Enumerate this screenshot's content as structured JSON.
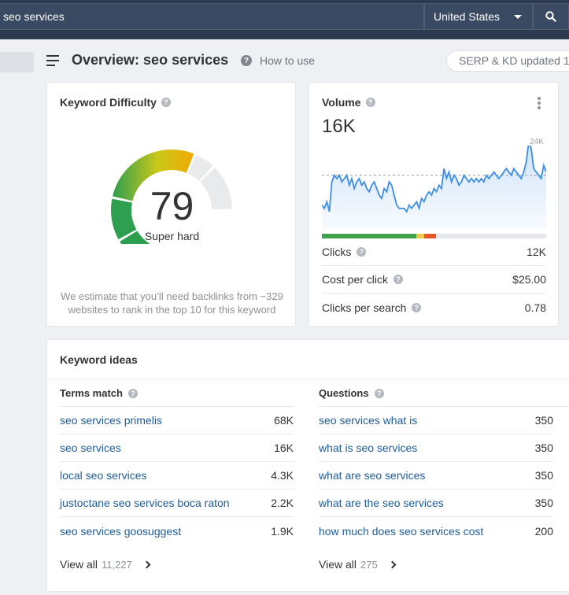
{
  "topbar": {
    "search_value": "seo services",
    "country": "United States"
  },
  "header": {
    "title": "Overview: seo services",
    "how_to_use": "How to use",
    "serp_status": "SERP & KD updated 1"
  },
  "keyword_difficulty": {
    "title": "Keyword Difficulty",
    "value": "79",
    "label": "Super hard",
    "note": "We estimate that you’ll need backlinks from ~329 websites to rank in the top 10 for this keyword",
    "colors": {
      "green": "#2e9e4f",
      "lime": "#c8c81a",
      "orange": "#f2a900",
      "empty": "#e9eaec"
    }
  },
  "volume": {
    "title": "Volume",
    "value": "16K",
    "axis_max_label": "24K",
    "metrics": [
      {
        "label": "Clicks",
        "value": "12K"
      },
      {
        "label": "Cost per click",
        "value": "$25.00"
      },
      {
        "label": "Clicks per search",
        "value": "0.78"
      }
    ],
    "intent_bar": [
      {
        "share": 0.42,
        "color": "#3fa34d"
      },
      {
        "share": 0.035,
        "color": "#f2c94c"
      },
      {
        "share": 0.055,
        "color": "#e8562a"
      }
    ],
    "trend_color": "#3d8ee6",
    "trend": [
      7,
      6,
      8,
      5,
      14,
      16,
      15,
      16,
      14,
      15,
      16,
      13,
      15,
      12,
      14,
      15,
      13,
      14,
      12,
      11,
      13,
      14,
      12,
      10,
      9,
      12,
      11,
      14,
      13,
      10,
      7,
      6,
      6,
      6,
      5,
      7,
      6,
      7,
      8,
      6,
      9,
      8,
      10,
      11,
      10,
      12,
      11,
      13,
      12,
      18,
      15,
      17,
      14,
      16,
      15,
      13,
      14,
      16,
      15,
      14,
      15,
      14,
      15,
      14,
      15,
      14,
      16,
      15,
      16,
      17,
      16,
      15,
      16,
      17,
      18,
      17,
      16,
      18,
      17,
      16,
      15,
      17,
      20,
      26,
      24,
      18,
      17,
      16,
      15,
      19,
      17
    ]
  },
  "keyword_ideas": {
    "title": "Keyword ideas",
    "terms_match": {
      "title": "Terms match",
      "rows": [
        {
          "keyword": "seo services primelis",
          "volume": "68K"
        },
        {
          "keyword": "seo services",
          "volume": "16K"
        },
        {
          "keyword": "local seo services",
          "volume": "4.3K"
        },
        {
          "keyword": "justoctane seo services boca raton",
          "volume": "2.2K"
        },
        {
          "keyword": "seo services goosuggest",
          "volume": "1.9K"
        }
      ],
      "view_all": "View all",
      "count": "11,227"
    },
    "questions": {
      "title": "Questions",
      "rows": [
        {
          "keyword": "seo services what is",
          "volume": "350"
        },
        {
          "keyword": "what is seo services",
          "volume": "350"
        },
        {
          "keyword": "what are seo services",
          "volume": "350"
        },
        {
          "keyword": "what are the seo services",
          "volume": "350"
        },
        {
          "keyword": "how much does seo services cost",
          "volume": "200"
        }
      ],
      "view_all": "View all",
      "count": "275"
    }
  }
}
